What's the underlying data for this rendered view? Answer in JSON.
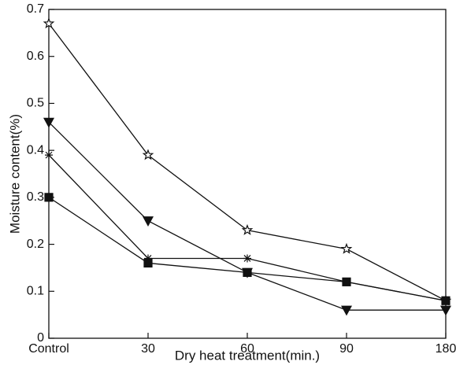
{
  "chart_data": {
    "type": "line",
    "xlabel": "Dry heat treatment(min.)",
    "ylabel": "Moisture content(%)",
    "categories": [
      "Control",
      "30",
      "60",
      "90",
      "180"
    ],
    "series": [
      {
        "color": "#111111",
        "marker": "star-open",
        "values": [
          0.67,
          0.39,
          0.23,
          0.19,
          0.08
        ]
      },
      {
        "color": "#111111",
        "marker": "triangle-down",
        "values": [
          0.46,
          0.25,
          0.14,
          0.06,
          0.06
        ]
      },
      {
        "color": "#111111",
        "marker": "asterisk",
        "values": [
          0.39,
          0.17,
          0.17,
          0.12,
          0.08
        ]
      },
      {
        "color": "#111111",
        "marker": "square",
        "values": [
          0.3,
          0.16,
          0.14,
          0.12,
          0.08
        ]
      }
    ],
    "ylim": [
      0,
      0.7
    ],
    "yticks": [
      0,
      0.1,
      0.2,
      0.3,
      0.4,
      0.5,
      0.6,
      0.7
    ],
    "grid": false
  }
}
